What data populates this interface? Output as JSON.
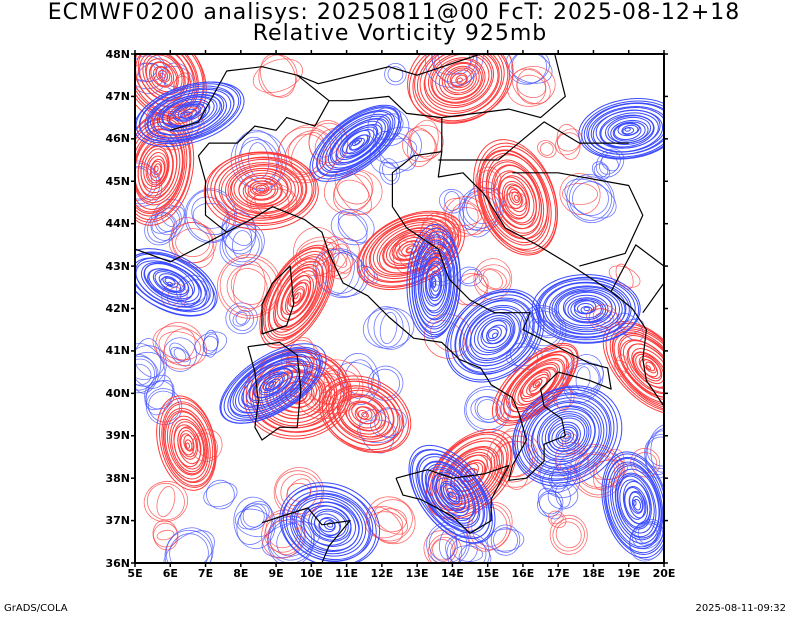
{
  "title": {
    "line1": "ECMWF0200 analisys: 20250811@00 FcT: 2025-08-12+18",
    "line2": "Relative Vorticity 925mb"
  },
  "map": {
    "lon_range": [
      5,
      20
    ],
    "lat_range": [
      36,
      48
    ],
    "lon_ticks": [
      "5E",
      "6E",
      "7E",
      "8E",
      "9E",
      "10E",
      "11E",
      "12E",
      "13E",
      "14E",
      "15E",
      "16E",
      "17E",
      "18E",
      "19E",
      "20E"
    ],
    "lat_ticks": [
      "48N",
      "47N",
      "46N",
      "45N",
      "44N",
      "43N",
      "42N",
      "41N",
      "40N",
      "39N",
      "38N",
      "37N",
      "36N"
    ],
    "colors": {
      "positive": "#ff3b3b",
      "negative": "#3b4bff",
      "coastline": "#000000",
      "background": "#ffffff"
    },
    "contour_fields": [
      {
        "sign": "positive",
        "lon": 15.8,
        "lat": 44.6,
        "strength": 1.0
      },
      {
        "sign": "positive",
        "lon": 9.6,
        "lat": 42.3,
        "strength": 0.9
      },
      {
        "sign": "positive",
        "lon": 12.8,
        "lat": 43.4,
        "strength": 0.9
      },
      {
        "sign": "positive",
        "lon": 8.6,
        "lat": 44.8,
        "strength": 0.9
      },
      {
        "sign": "positive",
        "lon": 5.6,
        "lat": 45.3,
        "strength": 0.9
      },
      {
        "sign": "positive",
        "lon": 19.6,
        "lat": 40.6,
        "strength": 0.9
      },
      {
        "sign": "positive",
        "lon": 14.5,
        "lat": 38.1,
        "strength": 0.8
      },
      {
        "sign": "positive",
        "lon": 16.4,
        "lat": 40.2,
        "strength": 0.8
      },
      {
        "sign": "positive",
        "lon": 9.6,
        "lat": 40.0,
        "strength": 0.8
      },
      {
        "sign": "positive",
        "lon": 6.5,
        "lat": 38.8,
        "strength": 0.6
      },
      {
        "sign": "positive",
        "lon": 11.5,
        "lat": 39.5,
        "strength": 0.6
      },
      {
        "sign": "positive",
        "lon": 14.2,
        "lat": 47.4,
        "strength": 0.8
      },
      {
        "sign": "positive",
        "lon": 5.8,
        "lat": 47.5,
        "strength": 0.7
      },
      {
        "sign": "negative",
        "lon": 8.9,
        "lat": 40.2,
        "strength": 1.0
      },
      {
        "sign": "negative",
        "lon": 13.5,
        "lat": 42.6,
        "strength": 0.9
      },
      {
        "sign": "negative",
        "lon": 14.0,
        "lat": 37.6,
        "strength": 0.9
      },
      {
        "sign": "negative",
        "lon": 17.2,
        "lat": 39.0,
        "strength": 0.9
      },
      {
        "sign": "negative",
        "lon": 6.5,
        "lat": 46.6,
        "strength": 0.9
      },
      {
        "sign": "negative",
        "lon": 11.3,
        "lat": 45.9,
        "strength": 0.8
      },
      {
        "sign": "negative",
        "lon": 17.8,
        "lat": 42.0,
        "strength": 0.8
      },
      {
        "sign": "negative",
        "lon": 6.0,
        "lat": 42.6,
        "strength": 0.7
      },
      {
        "sign": "negative",
        "lon": 10.5,
        "lat": 36.9,
        "strength": 0.7
      },
      {
        "sign": "negative",
        "lon": 19.0,
        "lat": 46.2,
        "strength": 0.7
      },
      {
        "sign": "negative",
        "lon": 15.2,
        "lat": 41.4,
        "strength": 0.8
      },
      {
        "sign": "negative",
        "lon": 19.2,
        "lat": 37.4,
        "strength": 0.8
      }
    ]
  },
  "footer": {
    "left": "GrADS/COLA",
    "right": "2025-08-11-09:32"
  }
}
